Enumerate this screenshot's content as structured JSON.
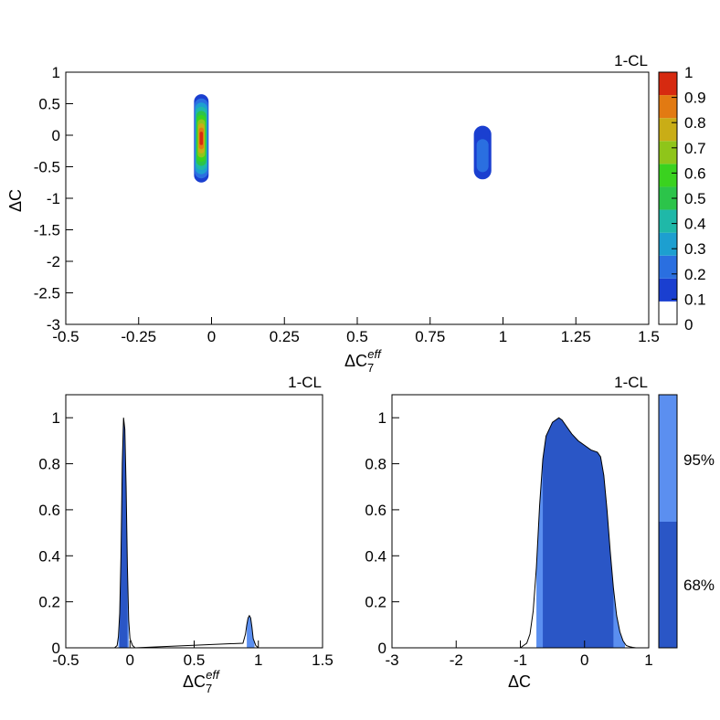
{
  "chart_data": [
    {
      "type": "heatmap",
      "title": "1-CL",
      "xlabel": "ΔC7eff",
      "xlabel_main": "ΔC",
      "xlabel_sub": "7",
      "xlabel_sup": "eff",
      "ylabel": "ΔC",
      "xlim": [
        -0.5,
        1.5
      ],
      "ylim": [
        -3,
        1
      ],
      "xticks": [
        "-0.5",
        "-0.25",
        "0",
        "0.25",
        "0.5",
        "0.75",
        "1",
        "1.25",
        "1.5"
      ],
      "yticks": [
        "-3",
        "-2.5",
        "-2",
        "-1.5",
        "-1",
        "-0.5",
        "0",
        "0.5",
        "1"
      ],
      "colorbar": {
        "range": [
          0,
          1
        ],
        "ticks": [
          "0",
          "0.1",
          "0.2",
          "0.3",
          "0.4",
          "0.5",
          "0.6",
          "0.7",
          "0.8",
          "0.9",
          "1"
        ],
        "colors": [
          "#ffffff",
          "#1a3fd0",
          "#2a6fe0",
          "#1d9fd0",
          "#1fb8a8",
          "#2cc44a",
          "#3ad21f",
          "#8fc51a",
          "#c9ad16",
          "#e27a12",
          "#d62a10"
        ]
      },
      "regions": [
        {
          "x_range": [
            -0.06,
            -0.01
          ],
          "y_range": [
            -0.75,
            0.65
          ],
          "peak": 1.0,
          "peak_y": -0.05
        },
        {
          "x_range": [
            0.9,
            0.96
          ],
          "y_range": [
            -0.7,
            0.15
          ],
          "peak": 0.2,
          "peak_y": -0.4
        }
      ],
      "grid": false
    },
    {
      "type": "area",
      "title": "1-CL",
      "xlabel": "ΔC7eff",
      "xlabel_main": "ΔC",
      "xlabel_sub": "7",
      "xlabel_sup": "eff",
      "xlim": [
        -0.5,
        1.5
      ],
      "ylim": [
        0,
        1.1
      ],
      "xticks": [
        "-0.5",
        "0",
        "0.5",
        "1",
        "1.5"
      ],
      "yticks": [
        "0",
        "0.2",
        "0.4",
        "0.6",
        "0.8",
        "1"
      ],
      "x": [
        -0.12,
        -0.1,
        -0.09,
        -0.08,
        -0.07,
        -0.06,
        -0.05,
        -0.04,
        -0.03,
        -0.02,
        -0.01,
        0.0,
        0.02,
        0.04,
        0.85,
        0.88,
        0.9,
        0.91,
        0.92,
        0.93,
        0.94,
        0.95,
        0.96,
        0.98,
        1.0
      ],
      "y": [
        0,
        0.01,
        0.05,
        0.15,
        0.4,
        0.8,
        1.0,
        0.95,
        0.7,
        0.35,
        0.12,
        0.04,
        0.01,
        0,
        0,
        0.02,
        0.06,
        0.1,
        0.13,
        0.14,
        0.13,
        0.09,
        0.04,
        0.01,
        0
      ],
      "band68": [
        -0.08,
        -0.02
      ],
      "band95": [
        [
          -0.09,
          -0.01
        ],
        [
          0.91,
          0.97
        ]
      ],
      "grid": false
    },
    {
      "type": "area",
      "title": "1-CL",
      "xlabel": "ΔC",
      "xlim": [
        -3,
        1
      ],
      "ylim": [
        0,
        1.1
      ],
      "xticks": [
        "-3",
        "-2",
        "-1",
        "0",
        "1"
      ],
      "yticks": [
        "0",
        "0.2",
        "0.4",
        "0.6",
        "0.8",
        "1"
      ],
      "x": [
        -1.0,
        -0.9,
        -0.85,
        -0.8,
        -0.75,
        -0.7,
        -0.65,
        -0.6,
        -0.5,
        -0.4,
        -0.35,
        -0.3,
        -0.2,
        -0.1,
        0.0,
        0.1,
        0.2,
        0.25,
        0.3,
        0.35,
        0.4,
        0.45,
        0.5,
        0.55,
        0.6,
        0.65,
        0.7,
        0.75,
        0.8
      ],
      "y": [
        0,
        0.02,
        0.06,
        0.16,
        0.35,
        0.62,
        0.82,
        0.92,
        0.98,
        1.0,
        0.99,
        0.97,
        0.93,
        0.9,
        0.88,
        0.86,
        0.85,
        0.83,
        0.75,
        0.6,
        0.42,
        0.26,
        0.14,
        0.07,
        0.03,
        0.01,
        0.005,
        0.002,
        0
      ],
      "band68": [
        -0.65,
        0.45
      ],
      "band95": [
        [
          -0.75,
          0.63
        ]
      ],
      "legend": {
        "items": [
          "95%",
          "68%"
        ],
        "colors": [
          "#5b8ff0",
          "#2a56c6"
        ],
        "placement": "right"
      },
      "grid": false
    }
  ]
}
